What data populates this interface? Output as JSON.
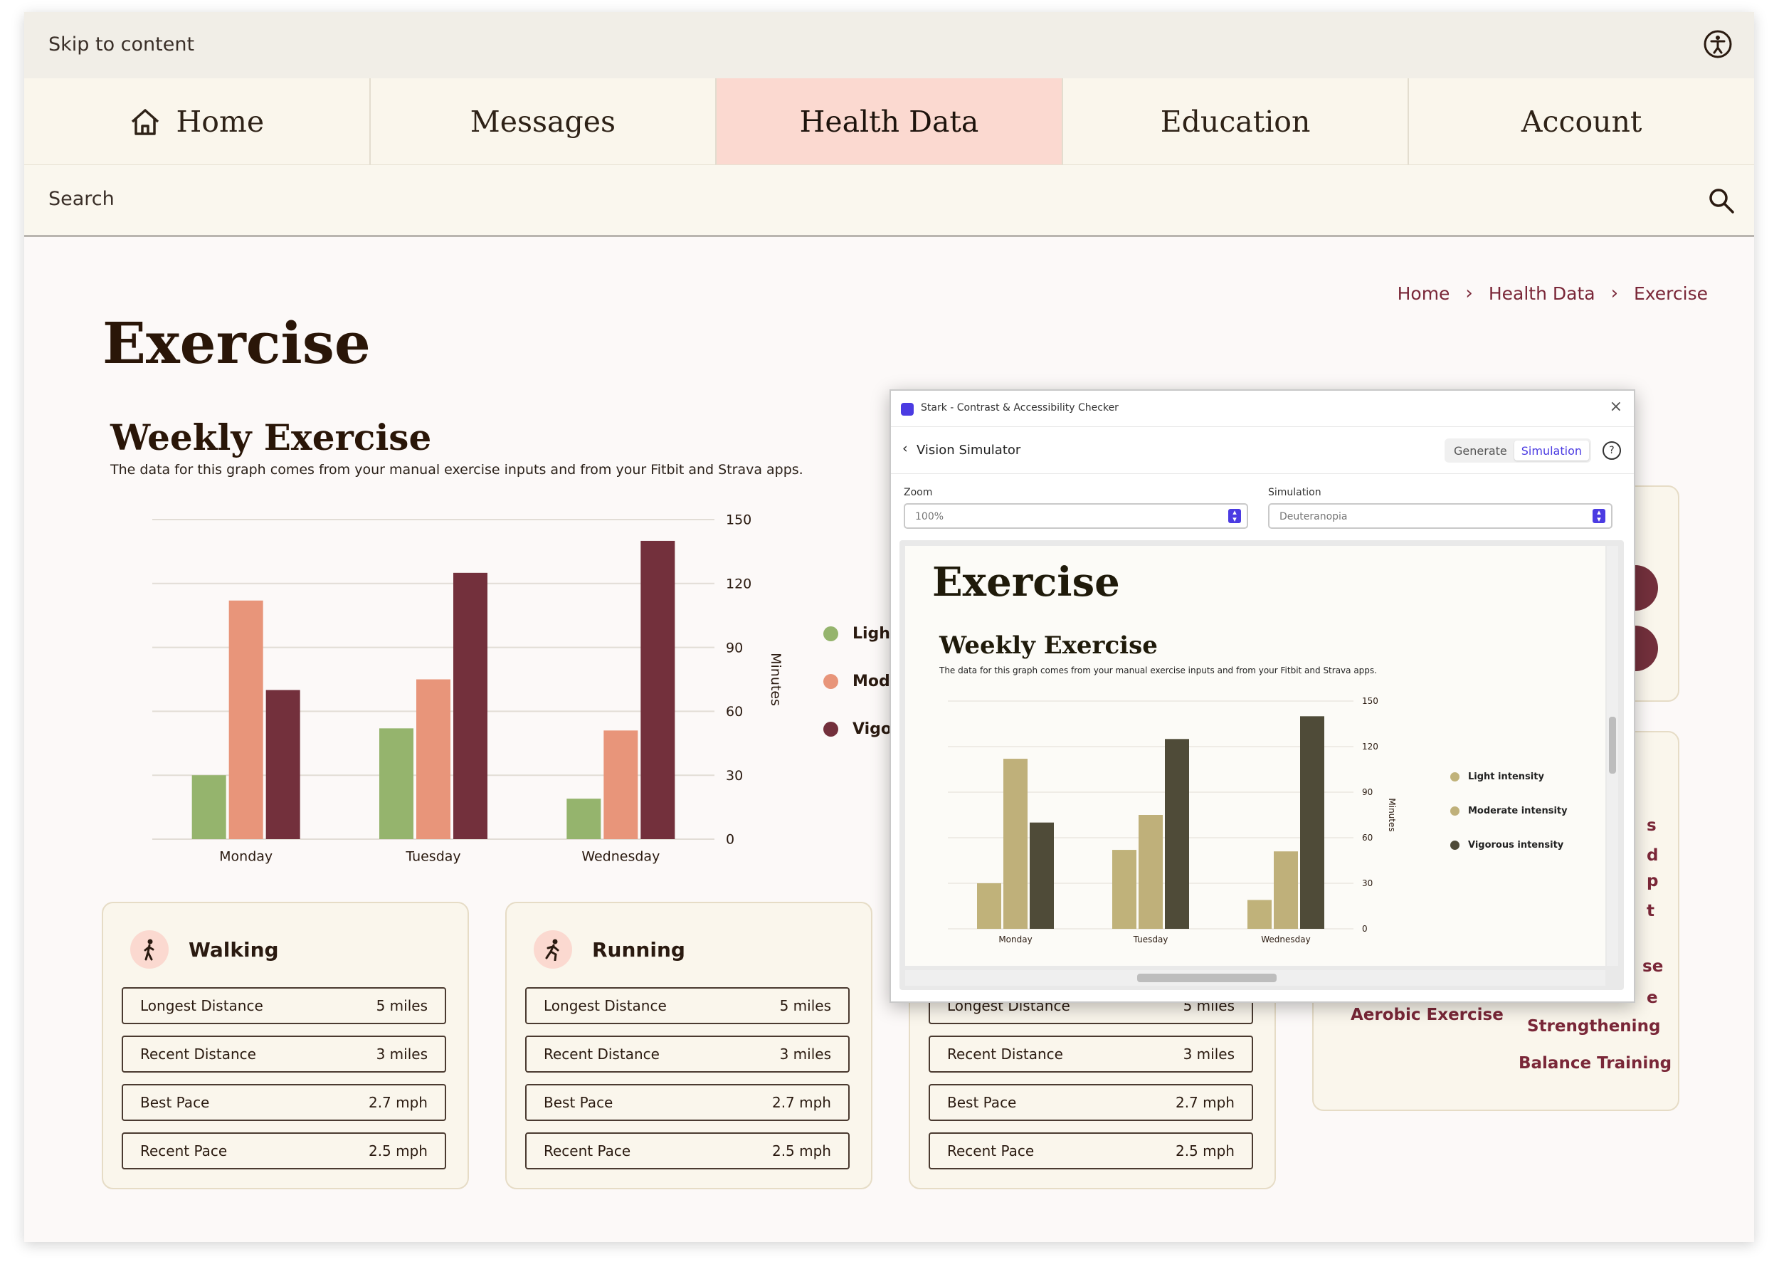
{
  "skip_link": "Skip to content",
  "nav": {
    "tabs": [
      {
        "label": "Home"
      },
      {
        "label": "Messages"
      },
      {
        "label": "Health Data",
        "active": true
      },
      {
        "label": "Education"
      },
      {
        "label": "Account"
      }
    ]
  },
  "search": {
    "placeholder": "Search"
  },
  "breadcrumb": [
    "Home",
    "Health Data",
    "Exercise"
  ],
  "page_title": "Exercise",
  "chart_section": {
    "title": "Weekly Exercise",
    "description": "The data for this graph comes from your manual exercise inputs and from your Fitbit and Strava apps."
  },
  "chart_data": {
    "type": "bar",
    "categories": [
      "Monday",
      "Tuesday",
      "Wednesday"
    ],
    "series": [
      {
        "name": "Light intensity",
        "values": [
          30,
          52,
          19
        ],
        "color": "#95b46d"
      },
      {
        "name": "Moderate intensity",
        "values": [
          112,
          75,
          51
        ],
        "color": "#e8957a"
      },
      {
        "name": "Vigorous intensity",
        "values": [
          70,
          125,
          140
        ],
        "color": "#73303c"
      }
    ],
    "ylabel": "Minutes",
    "ylim": [
      0,
      150
    ],
    "yticks": [
      0,
      30,
      60,
      90,
      120,
      150
    ],
    "legend_visible": [
      "Light i",
      "Moder",
      "Vigoro"
    ],
    "grid": true,
    "legend": "right"
  },
  "cards": [
    {
      "title": "Walking",
      "icon": "walking-icon",
      "rows": [
        {
          "label": "Longest Distance",
          "value": "5 miles"
        },
        {
          "label": "Recent Distance",
          "value": "3 miles"
        },
        {
          "label": "Best Pace",
          "value": "2.7 mph"
        },
        {
          "label": "Recent Pace",
          "value": "2.5 mph"
        }
      ]
    },
    {
      "title": "Running",
      "icon": "running-icon",
      "rows": [
        {
          "label": "Longest Distance",
          "value": "5 miles"
        },
        {
          "label": "Recent Distance",
          "value": "3 miles"
        },
        {
          "label": "Best Pace",
          "value": "2.7 mph"
        },
        {
          "label": "Recent Pace",
          "value": "2.5 mph"
        }
      ]
    },
    {
      "title": "",
      "icon": "",
      "rows": [
        {
          "label": "Longest Distance",
          "value": "5 miles"
        },
        {
          "label": "Recent Distance",
          "value": "3 miles"
        },
        {
          "label": "Best Pace",
          "value": "2.7 mph"
        },
        {
          "label": "Recent Pace",
          "value": "2.5 mph"
        }
      ]
    }
  ],
  "side_links": {
    "aerobic": "Aerobic Exercise",
    "strength": "Strengthening",
    "balance": "Balance Training",
    "partials": [
      "s",
      "d",
      "p",
      "t",
      "se",
      "e"
    ]
  },
  "stark": {
    "window_title": "Stark - Contrast & Accessibility Checker",
    "panel_title": "Vision Simulator",
    "modes": [
      "Generate",
      "Simulation"
    ],
    "active_mode": "Simulation",
    "zoom_label": "Zoom",
    "zoom_value": "100%",
    "simulation_label": "Simulation",
    "simulation_value": "Deuteranopia",
    "preview": {
      "title": "Exercise",
      "chart_title": "Weekly Exercise",
      "description": "The data for this graph comes from your manual exercise inputs and from your Fitbit and Strava apps.",
      "legend": [
        "Light intensity",
        "Moderate intensity",
        "Vigorous intensity"
      ],
      "colors": [
        "#c0b27a",
        "#bfb07a",
        "#4f4b38"
      ]
    }
  }
}
